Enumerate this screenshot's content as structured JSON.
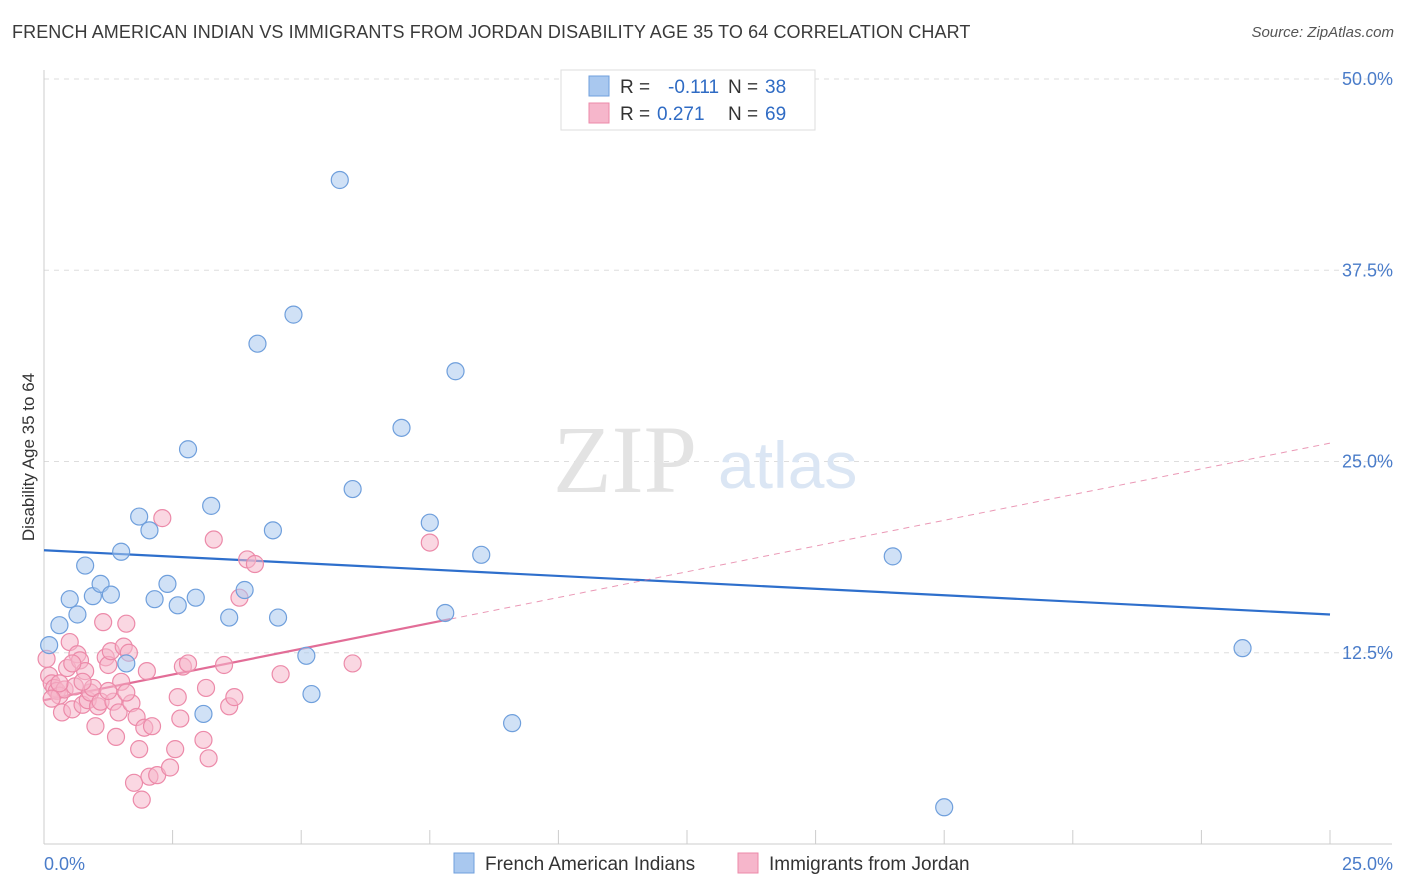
{
  "title": "FRENCH AMERICAN INDIAN VS IMMIGRANTS FROM JORDAN DISABILITY AGE 35 TO 64 CORRELATION CHART",
  "source": "Source: ZipAtlas.com",
  "watermark": {
    "zip": "ZIP",
    "atlas": "atlas"
  },
  "legend": {
    "rows": [
      {
        "r_label": "R =",
        "r_value": "-0.111",
        "n_label": "N =",
        "n_value": "38"
      },
      {
        "r_label": "R =",
        "r_value": "0.271",
        "n_label": "N =",
        "n_value": "69"
      }
    ]
  },
  "chart_data": {
    "type": "scatter",
    "title": "FRENCH AMERICAN INDIAN VS IMMIGRANTS FROM JORDAN DISABILITY AGE 35 TO 64 CORRELATION CHART",
    "xlabel": "",
    "ylabel": "Disability Age 35 to 64",
    "xlim": [
      0,
      25
    ],
    "ylim": [
      0,
      50
    ],
    "x_tick_labels": [
      "0.0%",
      "25.0%"
    ],
    "y_ticks": [
      12.5,
      25.0,
      37.5,
      50.0
    ],
    "y_tick_labels": [
      "12.5%",
      "25.0%",
      "37.5%",
      "50.0%"
    ],
    "grid": true,
    "legend_position": "top-center",
    "colors": {
      "blue_fill": "#a9c8ef",
      "blue_stroke": "#6f9fdc",
      "blue_line": "#2e6fcc",
      "pink_fill": "#f6b6cb",
      "pink_stroke": "#ec8aa9",
      "pink_line": "#e26d97",
      "grid": "#dddddd",
      "tick_text": "#4a7cc9"
    },
    "series": [
      {
        "name": "French American Indians",
        "color": "blue",
        "r": -0.111,
        "n": 38,
        "trend": {
          "x": [
            0,
            25
          ],
          "y": [
            19.2,
            15.0
          ]
        },
        "points": [
          [
            0.1,
            13.0
          ],
          [
            0.3,
            14.3
          ],
          [
            0.5,
            16.0
          ],
          [
            0.65,
            15.0
          ],
          [
            0.8,
            18.2
          ],
          [
            0.95,
            16.2
          ],
          [
            1.1,
            17.0
          ],
          [
            1.3,
            16.3
          ],
          [
            1.5,
            19.1
          ],
          [
            1.6,
            11.8
          ],
          [
            1.85,
            21.4
          ],
          [
            2.05,
            20.5
          ],
          [
            2.15,
            16.0
          ],
          [
            2.4,
            17.0
          ],
          [
            2.6,
            15.6
          ],
          [
            2.8,
            25.8
          ],
          [
            2.95,
            16.1
          ],
          [
            3.1,
            8.5
          ],
          [
            3.25,
            22.1
          ],
          [
            3.6,
            14.8
          ],
          [
            3.9,
            16.6
          ],
          [
            4.15,
            32.7
          ],
          [
            4.45,
            20.5
          ],
          [
            4.55,
            14.8
          ],
          [
            4.85,
            34.6
          ],
          [
            5.1,
            12.3
          ],
          [
            5.2,
            9.8
          ],
          [
            5.75,
            43.4
          ],
          [
            6.0,
            23.2
          ],
          [
            6.95,
            27.2
          ],
          [
            7.5,
            21.0
          ],
          [
            7.8,
            15.1
          ],
          [
            8.0,
            30.9
          ],
          [
            8.5,
            18.9
          ],
          [
            9.1,
            7.9
          ],
          [
            16.5,
            18.8
          ],
          [
            23.3,
            12.8
          ],
          [
            17.5,
            2.4
          ]
        ]
      },
      {
        "name": "Immigrants from Jordan",
        "color": "pink",
        "r": 0.271,
        "n": 69,
        "trend": {
          "x": [
            0,
            7.9
          ],
          "y": [
            9.4,
            14.7
          ],
          "extended": {
            "x": [
              7.9,
              25
            ],
            "y": [
              14.7,
              26.2
            ]
          }
        },
        "points": [
          [
            0.05,
            12.1
          ],
          [
            0.1,
            11.0
          ],
          [
            0.15,
            10.5
          ],
          [
            0.2,
            10.2
          ],
          [
            0.25,
            10.0
          ],
          [
            0.3,
            9.7
          ],
          [
            0.35,
            8.6
          ],
          [
            0.4,
            10.1
          ],
          [
            0.45,
            11.5
          ],
          [
            0.5,
            13.2
          ],
          [
            0.55,
            8.8
          ],
          [
            0.6,
            10.3
          ],
          [
            0.65,
            12.4
          ],
          [
            0.7,
            12.0
          ],
          [
            0.75,
            9.1
          ],
          [
            0.8,
            11.3
          ],
          [
            0.85,
            9.4
          ],
          [
            0.9,
            9.9
          ],
          [
            0.95,
            10.2
          ],
          [
            1.0,
            7.7
          ],
          [
            1.05,
            9.0
          ],
          [
            1.1,
            9.3
          ],
          [
            1.15,
            14.5
          ],
          [
            1.2,
            12.2
          ],
          [
            1.25,
            11.7
          ],
          [
            1.3,
            12.6
          ],
          [
            1.35,
            9.3
          ],
          [
            1.4,
            7.0
          ],
          [
            1.45,
            8.6
          ],
          [
            1.5,
            10.6
          ],
          [
            1.55,
            12.9
          ],
          [
            1.6,
            14.4
          ],
          [
            1.65,
            12.5
          ],
          [
            1.7,
            9.2
          ],
          [
            1.75,
            4.0
          ],
          [
            1.8,
            8.3
          ],
          [
            1.85,
            6.2
          ],
          [
            1.9,
            2.9
          ],
          [
            1.95,
            7.6
          ],
          [
            2.0,
            11.3
          ],
          [
            2.05,
            4.4
          ],
          [
            2.1,
            7.7
          ],
          [
            2.2,
            4.5
          ],
          [
            2.3,
            21.3
          ],
          [
            2.45,
            5.0
          ],
          [
            2.55,
            6.2
          ],
          [
            2.6,
            9.6
          ],
          [
            2.7,
            11.6
          ],
          [
            2.8,
            11.8
          ],
          [
            3.1,
            6.8
          ],
          [
            3.15,
            10.2
          ],
          [
            3.2,
            5.6
          ],
          [
            3.3,
            19.9
          ],
          [
            3.5,
            11.7
          ],
          [
            3.6,
            9.0
          ],
          [
            3.7,
            9.6
          ],
          [
            3.8,
            16.1
          ],
          [
            3.95,
            18.6
          ],
          [
            4.1,
            18.3
          ],
          [
            4.6,
            11.1
          ],
          [
            6.0,
            11.8
          ],
          [
            7.5,
            19.7
          ],
          [
            0.15,
            9.5
          ],
          [
            0.3,
            10.5
          ],
          [
            0.55,
            11.8
          ],
          [
            0.75,
            10.6
          ],
          [
            1.25,
            10.0
          ],
          [
            2.65,
            8.2
          ],
          [
            1.6,
            9.9
          ]
        ]
      }
    ]
  },
  "bottom_legend": [
    "French American Indians",
    "Immigrants from Jordan"
  ]
}
